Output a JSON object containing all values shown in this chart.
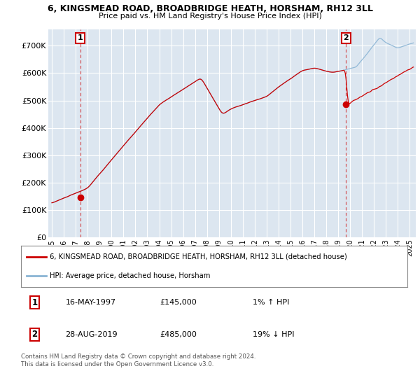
{
  "title": "6, KINGSMEAD ROAD, BROADBRIDGE HEATH, HORSHAM, RH12 3LL",
  "subtitle": "Price paid vs. HM Land Registry's House Price Index (HPI)",
  "ylabel_ticks": [
    "£0",
    "£100K",
    "£200K",
    "£300K",
    "£400K",
    "£500K",
    "£600K",
    "£700K"
  ],
  "ytick_values": [
    0,
    100000,
    200000,
    300000,
    400000,
    500000,
    600000,
    700000
  ],
  "ylim": [
    0,
    760000
  ],
  "xlim_start": 1994.7,
  "xlim_end": 2025.5,
  "background_plot": "#dce6f0",
  "background_fig": "#ffffff",
  "grid_color": "#ffffff",
  "line_color_hpi": "#8ab4d4",
  "line_color_price": "#cc0000",
  "purchase1_x": 1997.37,
  "purchase1_y": 145000,
  "purchase2_x": 2019.66,
  "purchase2_y": 485000,
  "legend_line1": "6, KINGSMEAD ROAD, BROADBRIDGE HEATH, HORSHAM, RH12 3LL (detached house)",
  "legend_line2": "HPI: Average price, detached house, Horsham",
  "purchase1_date": "16-MAY-1997",
  "purchase1_price": "£145,000",
  "purchase1_hpi": "1% ↑ HPI",
  "purchase2_date": "28-AUG-2019",
  "purchase2_price": "£485,000",
  "purchase2_hpi": "19% ↓ HPI",
  "footer": "Contains HM Land Registry data © Crown copyright and database right 2024.\nThis data is licensed under the Open Government Licence v3.0.",
  "xticks": [
    1995,
    1996,
    1997,
    1998,
    1999,
    2000,
    2001,
    2002,
    2003,
    2004,
    2005,
    2006,
    2007,
    2008,
    2009,
    2010,
    2011,
    2012,
    2013,
    2014,
    2015,
    2016,
    2017,
    2018,
    2019,
    2020,
    2021,
    2022,
    2023,
    2024,
    2025
  ]
}
